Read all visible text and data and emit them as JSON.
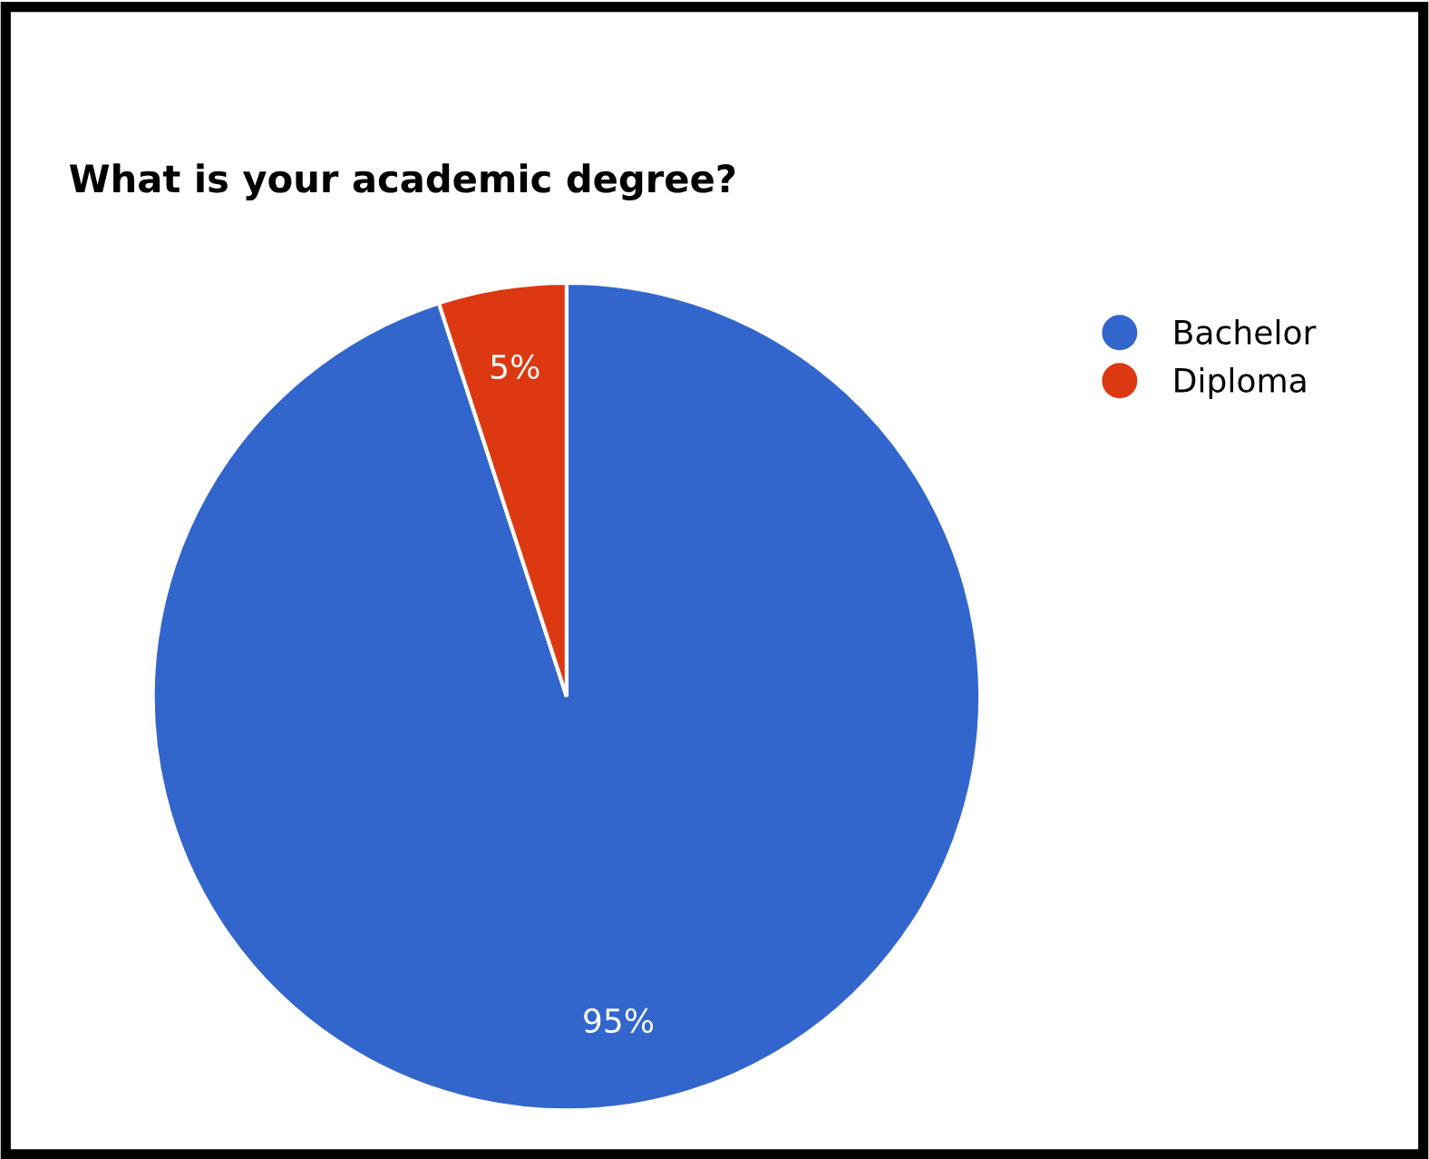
{
  "chart_data": {
    "type": "pie",
    "title": "What is your academic degree?",
    "categories": [
      "Bachelor",
      "Diploma"
    ],
    "values": [
      95,
      5
    ],
    "colors": [
      "#3366cc",
      "#dc3912"
    ],
    "value_labels": [
      "95%",
      "5%"
    ],
    "legend": "right"
  }
}
